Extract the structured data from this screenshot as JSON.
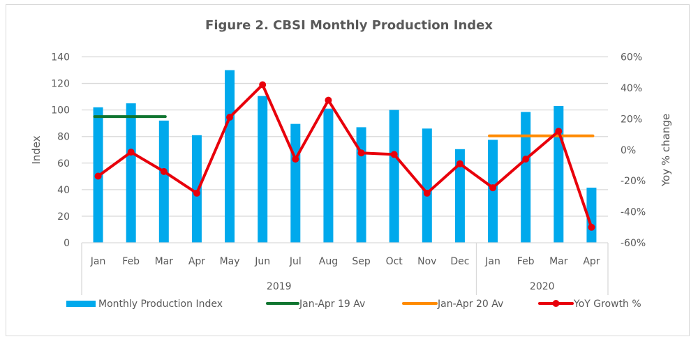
{
  "chart_data": {
    "type": "bar",
    "title": "Figure 2. CBSI Monthly Production Index",
    "xlabel": "",
    "ylabel": "Index",
    "y2label": "Yoy % change",
    "ylim": [
      0,
      140
    ],
    "y_ticks": [
      0,
      20,
      40,
      60,
      80,
      100,
      120,
      140
    ],
    "y2lim": [
      -60,
      60
    ],
    "y2_ticks": [
      "-60%",
      "-40%",
      "-20%",
      "0%",
      "20%",
      "40%",
      "60%"
    ],
    "y2_tick_values": [
      -60,
      -40,
      -20,
      0,
      20,
      40,
      60
    ],
    "grid": true,
    "categories": [
      "Jan",
      "Feb",
      "Mar",
      "Apr",
      "May",
      "Jun",
      "Jul",
      "Aug",
      "Sep",
      "Oct",
      "Nov",
      "Dec",
      "Jan",
      "Feb",
      "Mar",
      "Apr"
    ],
    "groups": [
      {
        "label": "2019",
        "start": 0,
        "end": 11
      },
      {
        "label": "2020",
        "start": 12,
        "end": 15
      }
    ],
    "series": [
      {
        "name": "Monthly Production Index",
        "type": "bar",
        "axis": "left",
        "color": "#00a9ec",
        "values": [
          102,
          105,
          92,
          81,
          130,
          110.5,
          89.5,
          101,
          87,
          100,
          86,
          70.5,
          77.5,
          98.5,
          103,
          41.5
        ]
      },
      {
        "name": "Jan-Apr 19 Av",
        "type": "line",
        "axis": "left",
        "color": "#107530",
        "start": 0,
        "end": 2,
        "value": 95
      },
      {
        "name": "Jan-Apr 20 Av",
        "type": "line",
        "axis": "left",
        "color": "#ff8a00",
        "start": 12,
        "end": 15,
        "value": 80.5
      },
      {
        "name": "YoY Growth %",
        "type": "line-markers",
        "axis": "right",
        "color": "#e8000b",
        "values": [
          -17,
          -1.5,
          -14,
          -28,
          21,
          42,
          -6,
          32,
          -2,
          -3,
          -28,
          -9,
          -24.5,
          -6,
          12,
          -50
        ]
      }
    ],
    "legend_position": "bottom"
  }
}
